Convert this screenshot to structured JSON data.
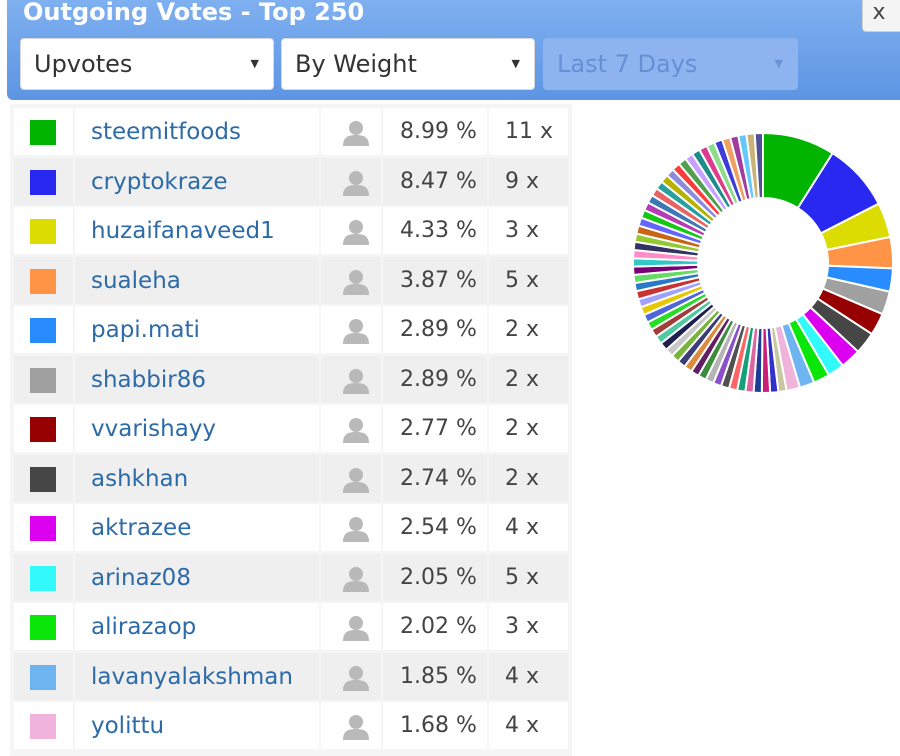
{
  "header": {
    "title": "Outgoing Votes - Top 250",
    "close_label": "x",
    "filters": {
      "type": "Upvotes",
      "sort": "By Weight",
      "period": "Last 7 Days"
    },
    "colors": {
      "accent": "#6a9fe8"
    }
  },
  "table": {
    "rows": [
      {
        "name": "steemitfoods",
        "pct": "8.99 %",
        "count": "11 x",
        "color": "#00b400",
        "weight": 8.99
      },
      {
        "name": "cryptokraze",
        "pct": "8.47 %",
        "count": "9 x",
        "color": "#2828f0",
        "weight": 8.47
      },
      {
        "name": "huzaifanaveed1",
        "pct": "4.33 %",
        "count": "3 x",
        "color": "#dcdc00",
        "weight": 4.33
      },
      {
        "name": "sualeha",
        "pct": "3.87 %",
        "count": "5 x",
        "color": "#ff9446",
        "weight": 3.87
      },
      {
        "name": "papi.mati",
        "pct": "2.89 %",
        "count": "2 x",
        "color": "#288cff",
        "weight": 2.89
      },
      {
        "name": "shabbir86",
        "pct": "2.89 %",
        "count": "2 x",
        "color": "#a0a0a0",
        "weight": 2.89
      },
      {
        "name": "vvarishayy",
        "pct": "2.77 %",
        "count": "2 x",
        "color": "#960000",
        "weight": 2.77
      },
      {
        "name": "ashkhan",
        "pct": "2.74 %",
        "count": "2 x",
        "color": "#464646",
        "weight": 2.74
      },
      {
        "name": "aktrazee",
        "pct": "2.54 %",
        "count": "4 x",
        "color": "#dc00f0",
        "weight": 2.54
      },
      {
        "name": "arinaz08",
        "pct": "2.05 %",
        "count": "5 x",
        "color": "#32fafa",
        "weight": 2.05
      },
      {
        "name": "alirazaop",
        "pct": "2.02 %",
        "count": "3 x",
        "color": "#0ae60a",
        "weight": 2.02
      },
      {
        "name": "lavanyalakshman",
        "pct": "1.85 %",
        "count": "4 x",
        "color": "#6eb4f0",
        "weight": 1.85
      },
      {
        "name": "yolittu",
        "pct": "1.68 %",
        "count": "4 x",
        "color": "#f0b4dc",
        "weight": 1.68
      }
    ],
    "avatar_icon": "user-icon"
  },
  "chart_data": {
    "type": "pie",
    "labels": [
      "steemitfoods",
      "cryptokraze",
      "huzaifanaveed1",
      "sualeha",
      "papi.mati",
      "shabbir86",
      "vvarishayy",
      "ashkhan",
      "aktrazee",
      "arinaz08",
      "alirazaop",
      "lavanyalakshman",
      "yolittu"
    ],
    "values": [
      8.99,
      8.47,
      4.33,
      3.87,
      2.89,
      2.89,
      2.77,
      2.74,
      2.54,
      2.05,
      2.02,
      1.85,
      1.68
    ],
    "colors": [
      "#00b400",
      "#2828f0",
      "#dcdc00",
      "#ff9446",
      "#288cff",
      "#a0a0a0",
      "#960000",
      "#464646",
      "#dc00f0",
      "#32fafa",
      "#0ae60a",
      "#6eb4f0",
      "#f0b4dc"
    ],
    "other_slice_colors": [
      "#c8c8a0",
      "#3232c8",
      "#c81e78",
      "#1e3c96",
      "#dc64a0",
      "#14a078",
      "#ff6464",
      "#505050",
      "#8c50c8",
      "#b4b4b4",
      "#3c8c3c",
      "#641e64",
      "#dc8c3c",
      "#3c3c78",
      "#78b43c",
      "#c8c8c8",
      "#1e1e50",
      "#50c8a0",
      "#a03c3c",
      "#28dc28",
      "#5064dc",
      "#e6c800",
      "#a0a0ff",
      "#c83232",
      "#2878c8",
      "#64dc64",
      "#780078",
      "#32c8c8",
      "#ff8cc8",
      "#323264",
      "#96c832",
      "#c86414",
      "#6464ff",
      "#14c814",
      "#b43cb4",
      "#3c78b4",
      "#e66464",
      "#28a0a0",
      "#b4b400",
      "#8c8cdc",
      "#ff3c3c",
      "#50a050",
      "#c8a0ff",
      "#1e8c8c",
      "#dc3c8c",
      "#8cdc8c",
      "#3c3cdc",
      "#f0a064",
      "#a03ca0",
      "#64c8ff",
      "#c8b478",
      "#505096"
    ],
    "hole": 0.5
  }
}
